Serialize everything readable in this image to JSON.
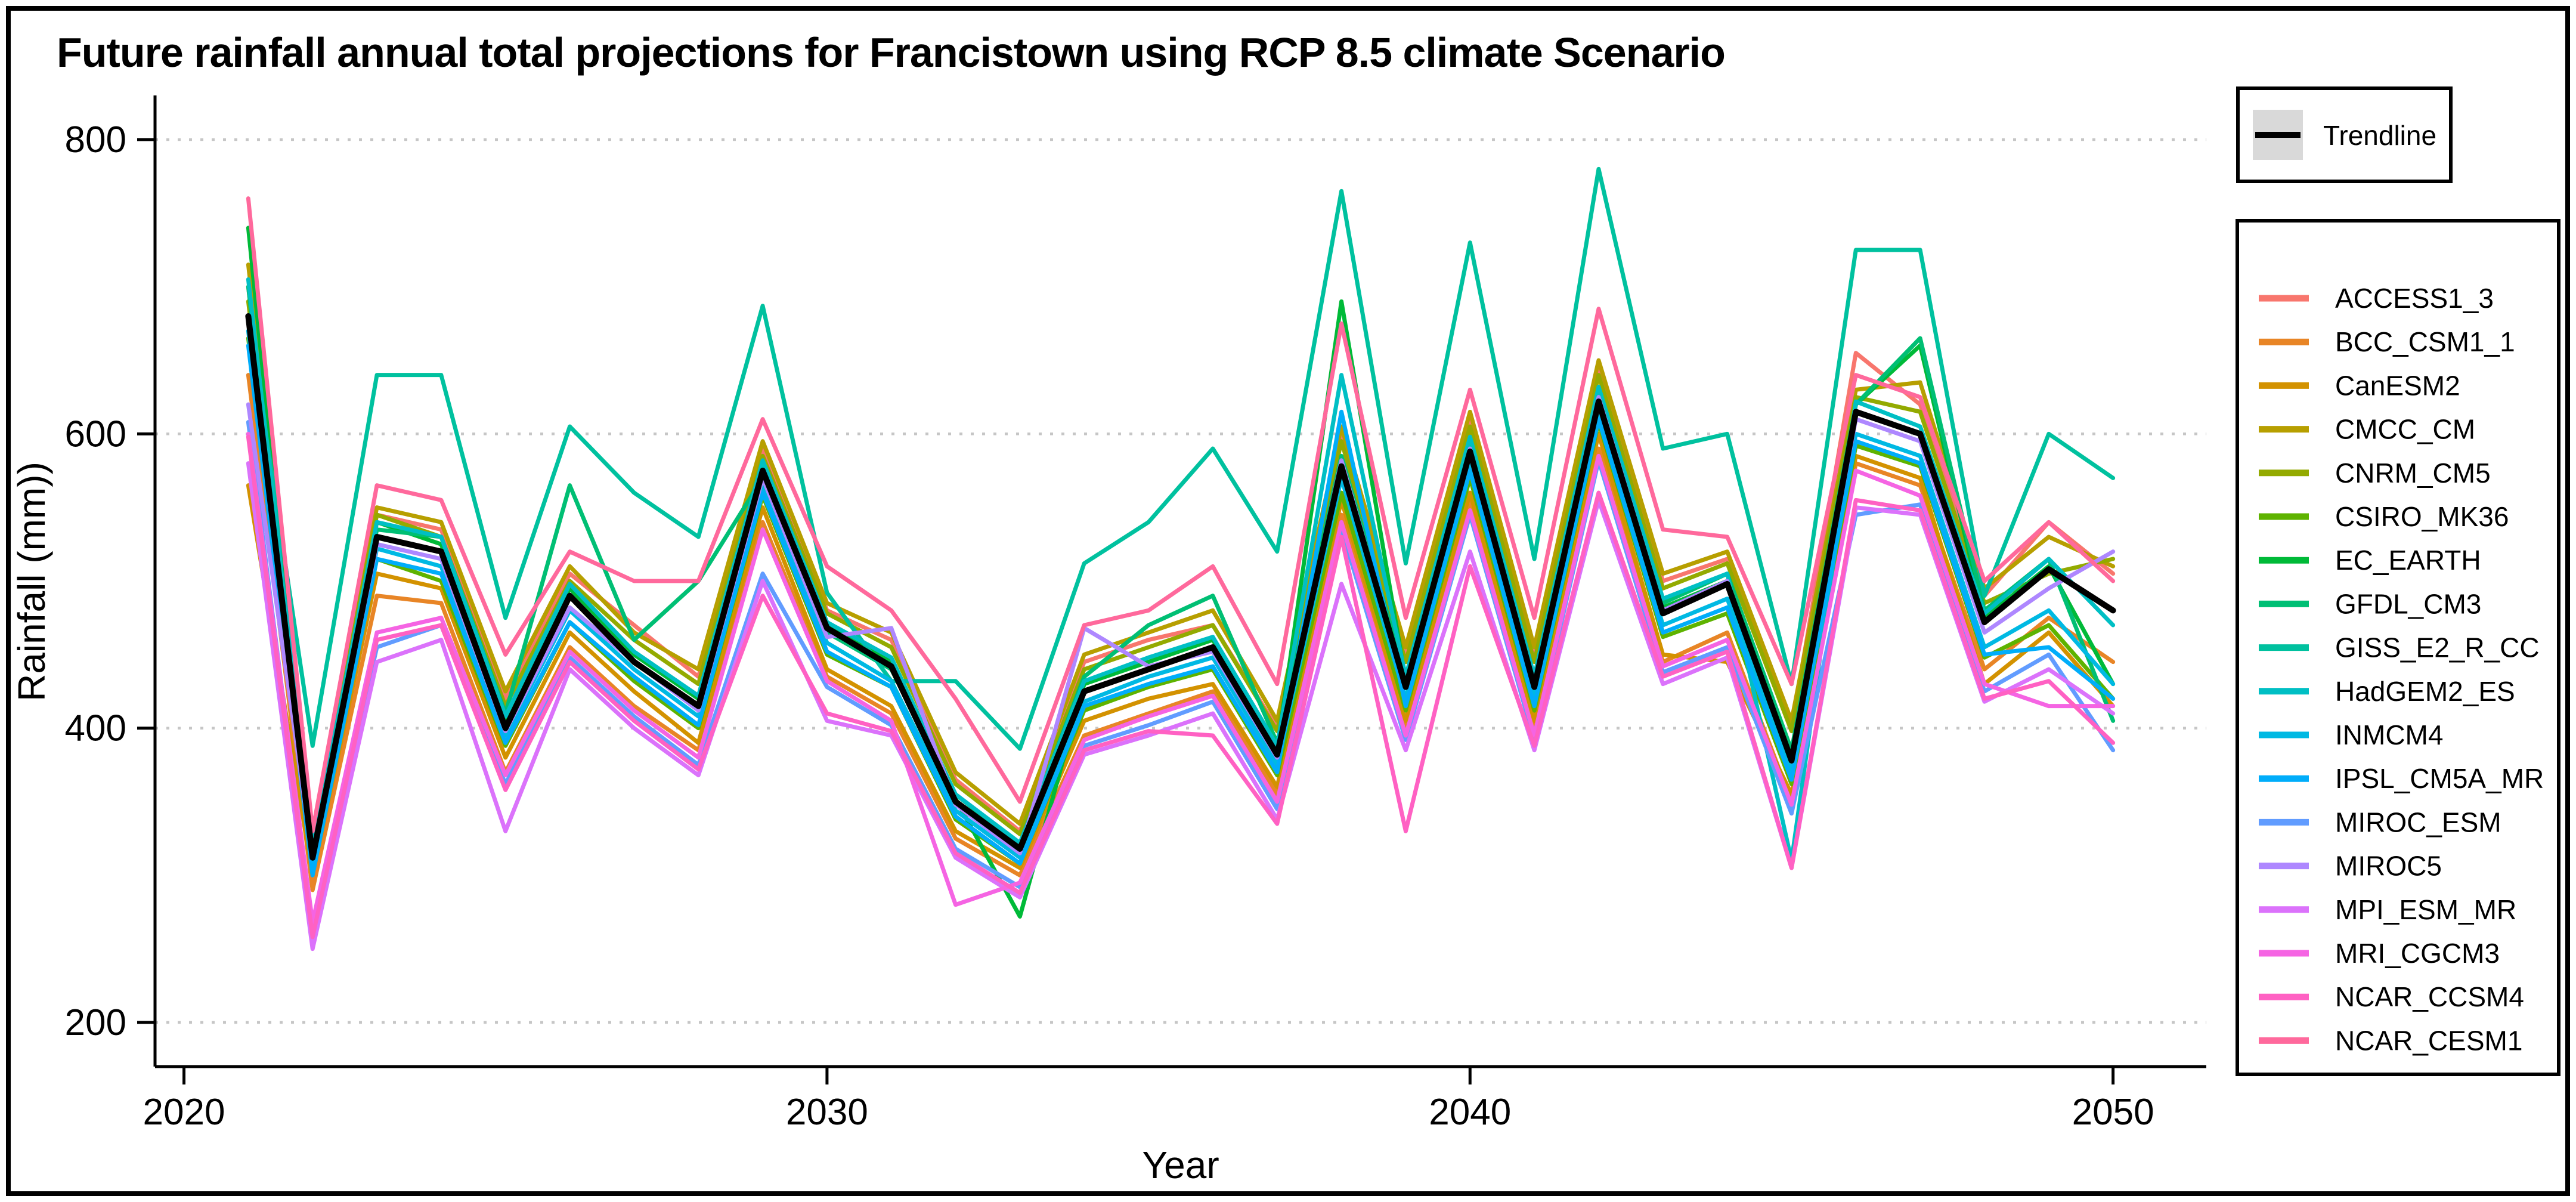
{
  "figure": {
    "background": "#FFFFFF",
    "border_color": "#000000"
  },
  "chart_data": {
    "type": "line",
    "title": "Future rainfall annual total projections for Francistown using RCP 8.5 climate Scenario",
    "xlabel": "Year",
    "ylabel": "Rainfall (mm))",
    "x_ticks": [
      2020,
      2030,
      2040,
      2050
    ],
    "y_ticks": [
      200,
      400,
      600,
      800
    ],
    "xlim": [
      2019.55,
      2051.45
    ],
    "ylim": [
      170,
      830
    ],
    "grid": "horizontal dotted gray",
    "gridline_color": "#C6C6C6",
    "legend_position": "right",
    "years": [
      2021,
      2022,
      2023,
      2024,
      2025,
      2026,
      2027,
      2028,
      2029,
      2030,
      2031,
      2032,
      2033,
      2034,
      2035,
      2036,
      2037,
      2038,
      2039,
      2040,
      2041,
      2042,
      2043,
      2044,
      2045,
      2046,
      2047,
      2048,
      2049,
      2050
    ],
    "trendline": {
      "label": "Trendline",
      "color": "#000000",
      "key_fill": "#D9D9D9",
      "values": [
        680,
        312,
        530,
        520,
        400,
        490,
        445,
        415,
        575,
        468,
        442,
        350,
        318,
        425,
        440,
        455,
        382,
        578,
        428,
        588,
        428,
        622,
        478,
        498,
        378,
        615,
        600,
        472,
        508,
        480
      ]
    },
    "series": [
      {
        "name": "ACCESS1_3",
        "color": "#F8766D",
        "values": [
          700,
          320,
          545,
          535,
          420,
          505,
          470,
          435,
          590,
          480,
          460,
          365,
          330,
          445,
          460,
          470,
          400,
          600,
          450,
          610,
          450,
          645,
          500,
          515,
          400,
          655,
          620,
          490,
          540,
          505
        ]
      },
      {
        "name": "BCC_CSM1_1",
        "color": "#E88526",
        "values": [
          640,
          290,
          490,
          485,
          370,
          455,
          415,
          385,
          540,
          435,
          410,
          325,
          300,
          395,
          410,
          425,
          355,
          545,
          400,
          555,
          400,
          590,
          445,
          465,
          350,
          580,
          565,
          440,
          475,
          445
        ]
      },
      {
        "name": "CanESM2",
        "color": "#D39200",
        "values": [
          565,
          300,
          505,
          495,
          380,
          465,
          425,
          390,
          550,
          440,
          415,
          330,
          305,
          405,
          420,
          430,
          360,
          555,
          405,
          560,
          405,
          600,
          450,
          445,
          355,
          585,
          570,
          430,
          465,
          415
        ]
      },
      {
        "name": "CMCC_CM",
        "color": "#B79F00",
        "values": [
          715,
          330,
          550,
          540,
          425,
          510,
          465,
          440,
          595,
          485,
          465,
          370,
          335,
          450,
          465,
          480,
          405,
          605,
          455,
          615,
          455,
          650,
          505,
          520,
          405,
          630,
          635,
          495,
          530,
          510
        ]
      },
      {
        "name": "CNRM_CM5",
        "color": "#93AA00",
        "values": [
          690,
          325,
          545,
          530,
          415,
          500,
          460,
          430,
          585,
          478,
          455,
          362,
          328,
          440,
          455,
          470,
          398,
          595,
          445,
          605,
          445,
          640,
          495,
          512,
          398,
          625,
          615,
          485,
          505,
          515
        ]
      },
      {
        "name": "CSIRO_MK36",
        "color": "#5EB300",
        "values": [
          665,
          305,
          515,
          500,
          388,
          472,
          432,
          400,
          558,
          450,
          428,
          338,
          308,
          412,
          428,
          440,
          368,
          560,
          412,
          570,
          412,
          608,
          462,
          478,
          362,
          592,
          578,
          448,
          470,
          420
        ]
      },
      {
        "name": "EC_EARTH",
        "color": "#00BA38",
        "values": [
          740,
          310,
          540,
          525,
          405,
          495,
          450,
          420,
          580,
          470,
          445,
          352,
          272,
          430,
          445,
          460,
          385,
          690,
          432,
          592,
          430,
          628,
          482,
          500,
          380,
          620,
          660,
          475,
          510,
          430
        ]
      },
      {
        "name": "GFDL_CM3",
        "color": "#00BF74",
        "values": [
          700,
          315,
          535,
          530,
          410,
          565,
          460,
          500,
          570,
          465,
          440,
          355,
          320,
          435,
          470,
          490,
          390,
          585,
          435,
          595,
          435,
          630,
          485,
          505,
          385,
          620,
          665,
          480,
          515,
          405
        ]
      },
      {
        "name": "GISS_E2_R_CC",
        "color": "#00C19F",
        "values": [
          680,
          388,
          640,
          640,
          475,
          605,
          560,
          530,
          687,
          492,
          432,
          432,
          386,
          512,
          540,
          590,
          520,
          765,
          512,
          730,
          515,
          780,
          590,
          600,
          430,
          725,
          725,
          490,
          600,
          570
        ]
      },
      {
        "name": "HadGEM2_ES",
        "color": "#00BFC4",
        "values": [
          705,
          320,
          540,
          530,
          408,
          498,
          452,
          422,
          582,
          472,
          448,
          355,
          322,
          432,
          448,
          462,
          388,
          640,
          435,
          598,
          435,
          632,
          488,
          505,
          310,
          622,
          605,
          478,
          515,
          470
        ]
      },
      {
        "name": "INMCM4",
        "color": "#00B9E3",
        "values": [
          670,
          308,
          522,
          510,
          395,
          480,
          440,
          408,
          565,
          458,
          432,
          344,
          312,
          418,
          435,
          448,
          375,
          570,
          420,
          580,
          420,
          615,
          470,
          488,
          370,
          600,
          585,
          455,
          480,
          430
        ]
      },
      {
        "name": "IPSL_CM5A_MR",
        "color": "#00ADFA",
        "values": [
          660,
          300,
          515,
          505,
          390,
          472,
          435,
          402,
          560,
          452,
          428,
          340,
          308,
          415,
          430,
          442,
          370,
          615,
          415,
          575,
          415,
          610,
          465,
          482,
          365,
          595,
          580,
          450,
          455,
          420
        ]
      },
      {
        "name": "MIROC_ESM",
        "color": "#619CFF",
        "values": [
          608,
          262,
          455,
          470,
          362,
          448,
          408,
          375,
          505,
          428,
          402,
          318,
          292,
          388,
          402,
          418,
          345,
          535,
          392,
          545,
          392,
          582,
          438,
          455,
          342,
          545,
          552,
          425,
          450,
          385
        ]
      },
      {
        "name": "MIROC5",
        "color": "#AE87FF",
        "values": [
          620,
          312,
          525,
          515,
          398,
          482,
          445,
          412,
          570,
          462,
          468,
          348,
          315,
          468,
          442,
          452,
          380,
          582,
          428,
          590,
          430,
          625,
          480,
          500,
          378,
          610,
          595,
          465,
          495,
          520
        ]
      },
      {
        "name": "MPI_ESM_MR",
        "color": "#DB72FB",
        "values": [
          580,
          250,
          445,
          460,
          330,
          440,
          400,
          368,
          500,
          405,
          395,
          312,
          285,
          382,
          395,
          410,
          338,
          498,
          385,
          520,
          385,
          555,
          430,
          448,
          305,
          550,
          545,
          418,
          440,
          410
        ]
      },
      {
        "name": "MRI_CGCM3",
        "color": "#F564E3",
        "values": [
          600,
          268,
          465,
          475,
          368,
          452,
          412,
          380,
          535,
          432,
          405,
          280,
          295,
          392,
          408,
          422,
          350,
          540,
          395,
          548,
          395,
          585,
          442,
          460,
          348,
          575,
          558,
          430,
          415,
          415
        ]
      },
      {
        "name": "NCAR_CCSM4",
        "color": "#FF61C3",
        "values": [
          598,
          258,
          460,
          470,
          358,
          445,
          405,
          372,
          490,
          410,
          398,
          315,
          288,
          385,
          398,
          395,
          335,
          530,
          330,
          510,
          388,
          560,
          435,
          452,
          305,
          555,
          548,
          420,
          432,
          390
        ]
      },
      {
        "name": "NCAR_CESM1",
        "color": "#FF699C",
        "values": [
          760,
          330,
          565,
          555,
          450,
          520,
          500,
          500,
          610,
          510,
          480,
          420,
          350,
          470,
          480,
          510,
          430,
          675,
          475,
          630,
          475,
          685,
          535,
          530,
          430,
          640,
          625,
          500,
          540,
          500
        ]
      }
    ]
  }
}
